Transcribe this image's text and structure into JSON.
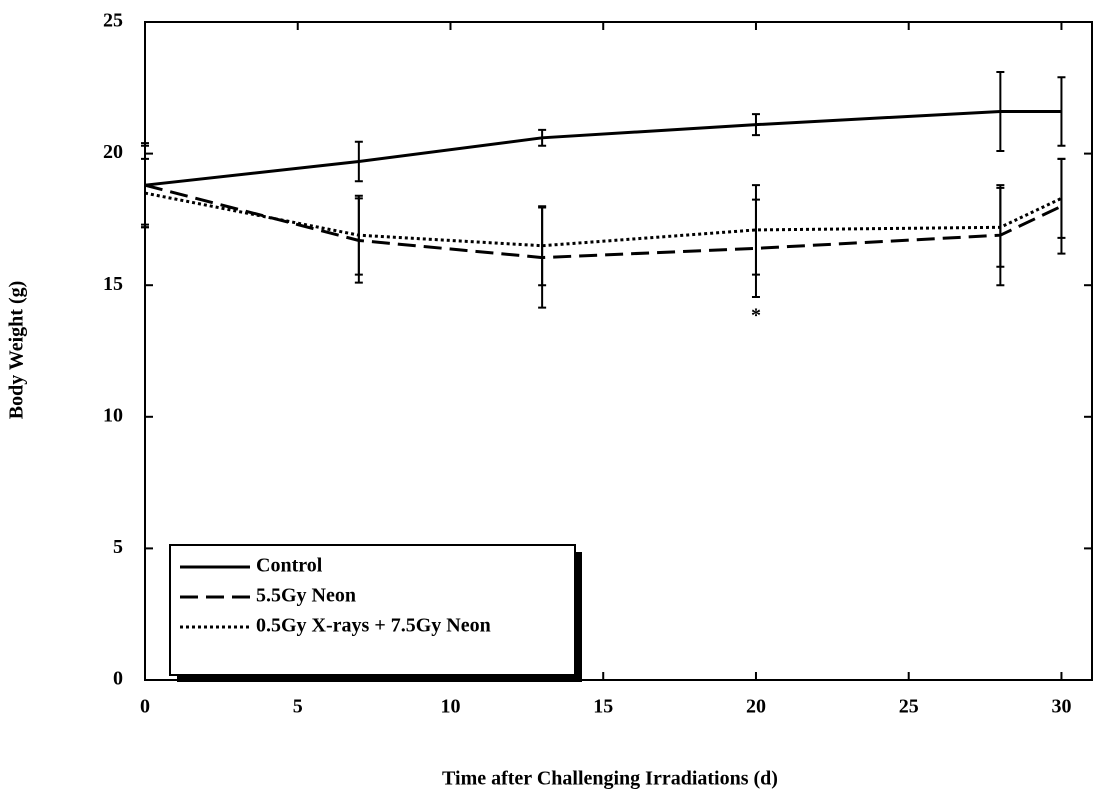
{
  "chart_data": {
    "type": "line",
    "x_label": "Time after Challenging Irradiations (d)",
    "y_label": "Body Weight (g)",
    "x": [
      0,
      7,
      13,
      20,
      28,
      30
    ],
    "series": [
      {
        "name": "Control",
        "color": "#000000",
        "dash": "solid",
        "values": [
          18.8,
          19.7,
          20.6,
          21.1,
          21.6,
          21.6
        ],
        "errors": [
          1.6,
          0.75,
          0.3,
          0.4,
          1.5,
          1.3
        ]
      },
      {
        "name": "5.5Gy Neon",
        "color": "#000000",
        "dash": "dashed",
        "values": [
          18.8,
          16.7,
          16.05,
          16.4,
          16.9,
          18.0
        ],
        "errors": [
          1.5,
          1.6,
          1.9,
          1.85,
          1.9,
          1.8
        ]
      },
      {
        "name": "0.5Gy X-rays + 7.5Gy Neon",
        "color": "#000000",
        "dash": "dotted",
        "values": [
          18.5,
          16.9,
          16.5,
          17.1,
          17.2,
          18.3
        ],
        "errors": [
          1.3,
          1.5,
          1.5,
          1.7,
          1.5,
          1.5
        ]
      }
    ],
    "annotations": [
      {
        "text": "*",
        "x": 20,
        "y": 13.8
      }
    ],
    "xlim": [
      0,
      31
    ],
    "xticks": [
      0,
      5,
      10,
      15,
      20,
      25,
      30
    ],
    "ylim": [
      0,
      25
    ],
    "yticks": [
      0,
      5,
      10,
      15,
      20,
      25
    ],
    "legend": "lower left"
  }
}
